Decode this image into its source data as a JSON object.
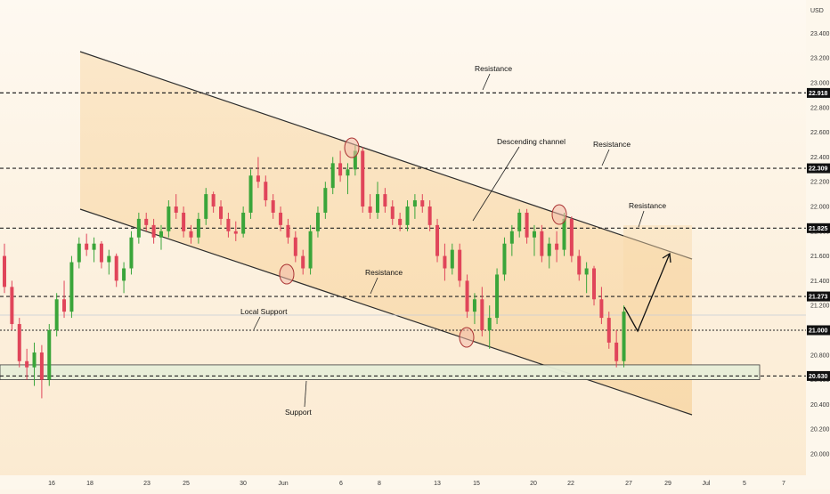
{
  "chart_data": {
    "type": "candlestick",
    "currency": "USD",
    "y_ticks": [
      23.4,
      23.2,
      23.0,
      22.8,
      22.6,
      22.4,
      22.2,
      22.0,
      21.8,
      21.6,
      21.4,
      21.2,
      21.0,
      20.8,
      20.6,
      20.4,
      20.2,
      20.0
    ],
    "ylim": [
      19.8,
      23.66
    ],
    "x_ticks": [
      "16",
      "18",
      "23",
      "25",
      "30",
      "Jun",
      "6",
      "8",
      "13",
      "15",
      "20",
      "22",
      "27",
      "29",
      "Jul",
      "5",
      "7"
    ],
    "horizontal_levels": [
      {
        "value": 22.918,
        "label": "22.918",
        "style": "dashed"
      },
      {
        "value": 22.309,
        "label": "22.309",
        "style": "dashed"
      },
      {
        "value": 21.825,
        "label": "21.825",
        "style": "dashed"
      },
      {
        "value": 21.273,
        "label": "21.273",
        "style": "dashed"
      },
      {
        "value": 21.0,
        "label": "21.000",
        "style": "dotted"
      },
      {
        "value": 20.63,
        "label": "20.630",
        "style": "dashed"
      }
    ],
    "support_zone": [
      20.6,
      20.72
    ],
    "annotations": [
      "Resistance",
      "Resistance",
      "Resistance",
      "Resistance",
      "Descending channel",
      "Local Support",
      "Support"
    ],
    "colors": {
      "up": "#3aa53a",
      "down": "#e0455a",
      "badge": "#111111",
      "channel_fill": "#fbe3bd"
    },
    "candles_ohlc": [
      [
        21.6,
        21.7,
        21.3,
        21.35
      ],
      [
        21.35,
        21.4,
        21.0,
        21.05
      ],
      [
        21.05,
        21.1,
        20.7,
        20.75
      ],
      [
        20.75,
        20.85,
        20.6,
        20.7
      ],
      [
        20.7,
        20.9,
        20.55,
        20.82
      ],
      [
        20.82,
        20.88,
        20.45,
        20.6
      ],
      [
        20.6,
        21.05,
        20.55,
        21.0
      ],
      [
        21.0,
        21.3,
        20.95,
        21.25
      ],
      [
        21.25,
        21.4,
        21.1,
        21.15
      ],
      [
        21.15,
        21.6,
        21.1,
        21.55
      ],
      [
        21.55,
        21.75,
        21.5,
        21.7
      ],
      [
        21.7,
        21.78,
        21.6,
        21.65
      ],
      [
        21.65,
        21.75,
        21.55,
        21.7
      ],
      [
        21.7,
        21.72,
        21.5,
        21.55
      ],
      [
        21.55,
        21.65,
        21.45,
        21.6
      ],
      [
        21.6,
        21.62,
        21.35,
        21.4
      ],
      [
        21.4,
        21.55,
        21.3,
        21.5
      ],
      [
        21.5,
        21.8,
        21.45,
        21.75
      ],
      [
        21.75,
        21.95,
        21.7,
        21.9
      ],
      [
        21.9,
        21.95,
        21.8,
        21.85
      ],
      [
        21.85,
        21.9,
        21.7,
        21.75
      ],
      [
        21.75,
        21.85,
        21.65,
        21.8
      ],
      [
        21.8,
        22.05,
        21.75,
        22.0
      ],
      [
        22.0,
        22.1,
        21.9,
        21.95
      ],
      [
        21.95,
        22.0,
        21.75,
        21.8
      ],
      [
        21.8,
        21.85,
        21.7,
        21.75
      ],
      [
        21.75,
        21.95,
        21.7,
        21.9
      ],
      [
        21.9,
        22.15,
        21.85,
        22.1
      ],
      [
        22.1,
        22.12,
        21.95,
        22.0
      ],
      [
        22.0,
        22.05,
        21.85,
        21.9
      ],
      [
        21.9,
        21.95,
        21.75,
        21.8
      ],
      [
        21.8,
        21.88,
        21.72,
        21.78
      ],
      [
        21.78,
        22.0,
        21.75,
        21.95
      ],
      [
        21.95,
        22.3,
        21.9,
        22.25
      ],
      [
        22.25,
        22.4,
        22.15,
        22.2
      ],
      [
        22.2,
        22.25,
        22.0,
        22.05
      ],
      [
        22.05,
        22.1,
        21.9,
        21.95
      ],
      [
        21.95,
        22.0,
        21.8,
        21.85
      ],
      [
        21.85,
        21.9,
        21.7,
        21.75
      ],
      [
        21.75,
        21.8,
        21.55,
        21.6
      ],
      [
        21.6,
        21.65,
        21.45,
        21.5
      ],
      [
        21.5,
        21.85,
        21.45,
        21.8
      ],
      [
        21.8,
        22.0,
        21.75,
        21.95
      ],
      [
        21.95,
        22.2,
        21.9,
        22.15
      ],
      [
        22.15,
        22.4,
        22.1,
        22.35
      ],
      [
        22.35,
        22.45,
        22.2,
        22.25
      ],
      [
        22.25,
        22.35,
        22.1,
        22.3
      ],
      [
        22.3,
        22.5,
        22.25,
        22.45
      ],
      [
        22.45,
        22.48,
        21.95,
        22.0
      ],
      [
        22.0,
        22.1,
        21.9,
        21.95
      ],
      [
        21.95,
        22.2,
        21.9,
        22.1
      ],
      [
        22.1,
        22.15,
        21.95,
        22.0
      ],
      [
        22.0,
        22.05,
        21.85,
        21.9
      ],
      [
        21.9,
        21.95,
        21.8,
        21.85
      ],
      [
        21.85,
        22.05,
        21.8,
        22.0
      ],
      [
        22.0,
        22.1,
        21.9,
        22.05
      ],
      [
        22.05,
        22.1,
        21.95,
        22.0
      ],
      [
        22.0,
        22.05,
        21.8,
        21.85
      ],
      [
        21.85,
        21.9,
        21.55,
        21.6
      ],
      [
        21.6,
        21.7,
        21.4,
        21.5
      ],
      [
        21.5,
        21.7,
        21.45,
        21.65
      ],
      [
        21.65,
        21.7,
        21.35,
        21.4
      ],
      [
        21.4,
        21.45,
        21.1,
        21.15
      ],
      [
        21.15,
        21.3,
        21.05,
        21.25
      ],
      [
        21.25,
        21.35,
        20.95,
        21.0
      ],
      [
        21.0,
        21.2,
        20.85,
        21.1
      ],
      [
        21.1,
        21.5,
        21.05,
        21.45
      ],
      [
        21.45,
        21.75,
        21.4,
        21.7
      ],
      [
        21.7,
        21.85,
        21.6,
        21.8
      ],
      [
        21.8,
        21.98,
        21.75,
        21.95
      ],
      [
        21.95,
        21.98,
        21.7,
        21.75
      ],
      [
        21.75,
        21.85,
        21.6,
        21.8
      ],
      [
        21.8,
        21.85,
        21.55,
        21.6
      ],
      [
        21.6,
        21.75,
        21.5,
        21.7
      ],
      [
        21.7,
        21.8,
        21.55,
        21.65
      ],
      [
        21.65,
        21.95,
        21.6,
        21.9
      ],
      [
        21.9,
        21.92,
        21.55,
        21.6
      ],
      [
        21.6,
        21.65,
        21.4,
        21.45
      ],
      [
        21.45,
        21.55,
        21.3,
        21.5
      ],
      [
        21.5,
        21.52,
        21.2,
        21.25
      ],
      [
        21.25,
        21.35,
        21.05,
        21.1
      ],
      [
        21.1,
        21.15,
        20.85,
        20.9
      ],
      [
        20.9,
        21.0,
        20.7,
        20.75
      ],
      [
        20.75,
        21.2,
        20.7,
        21.15
      ]
    ]
  }
}
